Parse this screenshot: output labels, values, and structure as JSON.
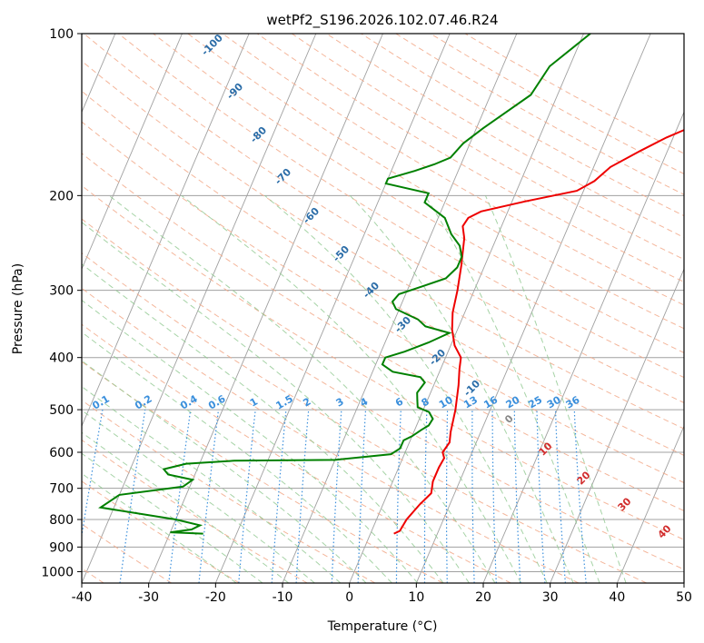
{
  "chart_data": {
    "type": "skew-t",
    "title": "wetPf2_S196.2026.102.07.46.R24",
    "xlabel": "Temperature (°C)",
    "ylabel": "Pressure (hPa)",
    "xlim": [
      -40,
      50
    ],
    "ylim": [
      1050,
      100
    ],
    "xticks": [
      -40,
      -30,
      -20,
      -10,
      0,
      10,
      20,
      30,
      40,
      50
    ],
    "yticks": [
      100,
      200,
      300,
      400,
      500,
      600,
      700,
      800,
      900,
      1000
    ],
    "colors": {
      "temperature": "#ee0000",
      "dewpoint": "#008000",
      "isotherm": "#a0a0a0",
      "dry_adiabat": "#f2a98a",
      "moist_adiabat": "#90c890",
      "mixing_ratio": "#3a8fdc",
      "dry_label": "#2b6da8",
      "theta_label": "#d12c2c"
    },
    "series": [
      {
        "name": "Temperature",
        "points": [
          [
            3.5,
            850
          ],
          [
            4.2,
            840
          ],
          [
            4.5,
            800
          ],
          [
            5.5,
            750
          ],
          [
            6.5,
            715
          ],
          [
            6.3,
            700
          ],
          [
            6,
            680
          ],
          [
            6,
            640
          ],
          [
            6.2,
            615
          ],
          [
            5.6,
            600
          ],
          [
            6,
            575
          ],
          [
            5.5,
            550
          ],
          [
            4.8,
            500
          ],
          [
            3.7,
            450
          ],
          [
            2.8,
            420
          ],
          [
            2.3,
            400
          ],
          [
            0.6,
            380
          ],
          [
            -0.8,
            355
          ],
          [
            -1.8,
            330
          ],
          [
            -2.5,
            300
          ],
          [
            -3.5,
            270
          ],
          [
            -4.8,
            240
          ],
          [
            -5.8,
            228
          ],
          [
            -5.5,
            220
          ],
          [
            -4,
            214
          ],
          [
            2,
            205
          ],
          [
            9,
            196
          ],
          [
            11,
            188
          ],
          [
            12.5,
            177
          ],
          [
            16,
            165
          ],
          [
            19,
            156
          ],
          [
            23,
            147
          ],
          [
            26,
            135
          ],
          [
            28,
            125
          ],
          [
            30,
            115
          ],
          [
            33,
            108
          ],
          [
            36,
            100
          ]
        ]
      },
      {
        "name": "Dewpoint",
        "points": [
          [
            -25,
            850
          ],
          [
            -30,
            845
          ],
          [
            -27,
            835
          ],
          [
            -26,
            820
          ],
          [
            -30,
            800
          ],
          [
            -42,
            760
          ],
          [
            -40,
            720
          ],
          [
            -31,
            695
          ],
          [
            -30,
            675
          ],
          [
            -34,
            660
          ],
          [
            -35,
            645
          ],
          [
            -32,
            630
          ],
          [
            -25,
            622
          ],
          [
            -10,
            620
          ],
          [
            -2,
            605
          ],
          [
            -1,
            590
          ],
          [
            -1,
            570
          ],
          [
            0,
            560
          ],
          [
            1,
            545
          ],
          [
            1.8,
            535
          ],
          [
            2,
            520
          ],
          [
            1,
            505
          ],
          [
            -1,
            495
          ],
          [
            -1.5,
            480
          ],
          [
            -2,
            465
          ],
          [
            -1.5,
            445
          ],
          [
            -2.5,
            435
          ],
          [
            -7,
            425
          ],
          [
            -9,
            412
          ],
          [
            -9,
            400
          ],
          [
            -6.5,
            390
          ],
          [
            -3.5,
            375
          ],
          [
            -1,
            360
          ],
          [
            -5,
            350
          ],
          [
            -6.5,
            340
          ],
          [
            -10.5,
            325
          ],
          [
            -11.5,
            315
          ],
          [
            -11,
            305
          ],
          [
            -8,
            295
          ],
          [
            -5,
            285
          ],
          [
            -4,
            272
          ],
          [
            -4,
            260
          ],
          [
            -5,
            248
          ],
          [
            -7,
            236
          ],
          [
            -9,
            220
          ],
          [
            -13,
            206
          ],
          [
            -13,
            198
          ],
          [
            -20,
            190
          ],
          [
            -20,
            186
          ],
          [
            -16.5,
            180
          ],
          [
            -14,
            175
          ],
          [
            -12,
            170
          ],
          [
            -11,
            160
          ],
          [
            -9,
            150
          ],
          [
            -4,
            130
          ],
          [
            -3,
            115
          ],
          [
            1,
            100
          ]
        ]
      }
    ],
    "dry_adiabat_labels": [
      "-100",
      "-90",
      "-80",
      "-70",
      "-60",
      "-50",
      "-40",
      "-30",
      "-20",
      "-10",
      "0",
      "10",
      "20",
      "30",
      "40"
    ],
    "mixing_ratio_labels": [
      "0.1",
      "0.2",
      "0.4",
      "0.6",
      "1",
      "1.5",
      "2",
      "3",
      "4",
      "6",
      "8",
      "10",
      "13",
      "16",
      "20",
      "25",
      "30",
      "36"
    ]
  }
}
